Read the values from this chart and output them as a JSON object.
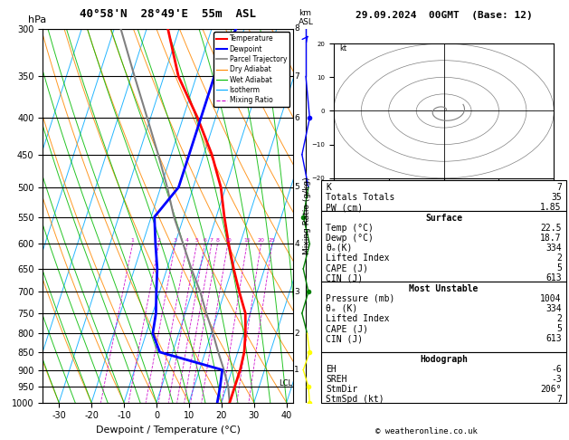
{
  "title_left": "40°58'N  28°49'E  55m  ASL",
  "title_right": "29.09.2024  00GMT  (Base: 12)",
  "xlabel": "Dewpoint / Temperature (°C)",
  "ylabel_left": "hPa",
  "ylabel_right": "km\nASL",
  "pressure_levels": [
    300,
    350,
    400,
    450,
    500,
    550,
    600,
    650,
    700,
    750,
    800,
    850,
    900,
    950,
    1000
  ],
  "temp_color": "#ff0000",
  "dewp_color": "#0000ff",
  "parcel_color": "#808080",
  "dry_adiabat_color": "#ff8800",
  "wet_adiabat_color": "#00bb00",
  "isotherm_color": "#00aaff",
  "mix_ratio_color": "#cc00cc",
  "background_color": "#ffffff",
  "temp_ticks": [
    -30,
    -20,
    -10,
    0,
    10,
    20,
    30,
    40
  ],
  "km_ticks": [
    1,
    2,
    3,
    4,
    5,
    6,
    7,
    8
  ],
  "km_pressures": [
    900,
    800,
    700,
    600,
    500,
    400,
    350,
    300
  ],
  "lcl_pressure": 940,
  "copyright": "© weatheronline.co.uk",
  "temp_p": [
    1000,
    950,
    900,
    850,
    800,
    750,
    700,
    650,
    600,
    550,
    500,
    450,
    400,
    350,
    300
  ],
  "temp_t": [
    22.5,
    22.5,
    22.5,
    22.0,
    20.5,
    18.5,
    14.5,
    10.5,
    6.5,
    2.5,
    -1.5,
    -7.5,
    -15.5,
    -25.5,
    -33.5
  ],
  "dewp_p": [
    1000,
    950,
    900,
    850,
    800,
    750,
    700,
    650,
    600,
    550,
    500,
    450,
    400,
    350,
    300
  ],
  "dewp_t": [
    18.7,
    18.0,
    17.0,
    -4.0,
    -8.0,
    -9.0,
    -11.0,
    -13.0,
    -16.0,
    -19.0,
    -14.5,
    -14.5,
    -14.5,
    -14.5,
    -12.5
  ],
  "parcel_p": [
    1000,
    950,
    900,
    850,
    800,
    750,
    700,
    650,
    600,
    550,
    500,
    450,
    400,
    350,
    300
  ],
  "parcel_t": [
    22.5,
    20.5,
    17.5,
    14.0,
    10.5,
    6.5,
    2.5,
    -2.5,
    -7.5,
    -13.0,
    -18.0,
    -24.0,
    -31.0,
    -39.0,
    -48.0
  ],
  "wind_p": [
    1000,
    950,
    900,
    850,
    800,
    750,
    700,
    650,
    600,
    550,
    500,
    450,
    400,
    350,
    300
  ],
  "wind_colors": [
    "yellow",
    "yellow",
    "yellow",
    "yellow",
    "yellow",
    "green",
    "green",
    "green",
    "green",
    "green",
    "blue",
    "blue",
    "blue",
    "blue",
    "blue"
  ],
  "stats": {
    "K": 7,
    "Totals_Totals": 35,
    "PW_cm": 1.85,
    "Surface_Temp": 22.5,
    "Surface_Dewp": 18.7,
    "Surface_theta_e": 334,
    "Surface_LI": 2,
    "Surface_CAPE": 5,
    "Surface_CIN": 613,
    "MU_Pressure": 1004,
    "MU_theta_e": 334,
    "MU_LI": 2,
    "MU_CAPE": 5,
    "MU_CIN": 613,
    "EH": -6,
    "SREH": -3,
    "StmDir": 206,
    "StmSpd": 7
  }
}
